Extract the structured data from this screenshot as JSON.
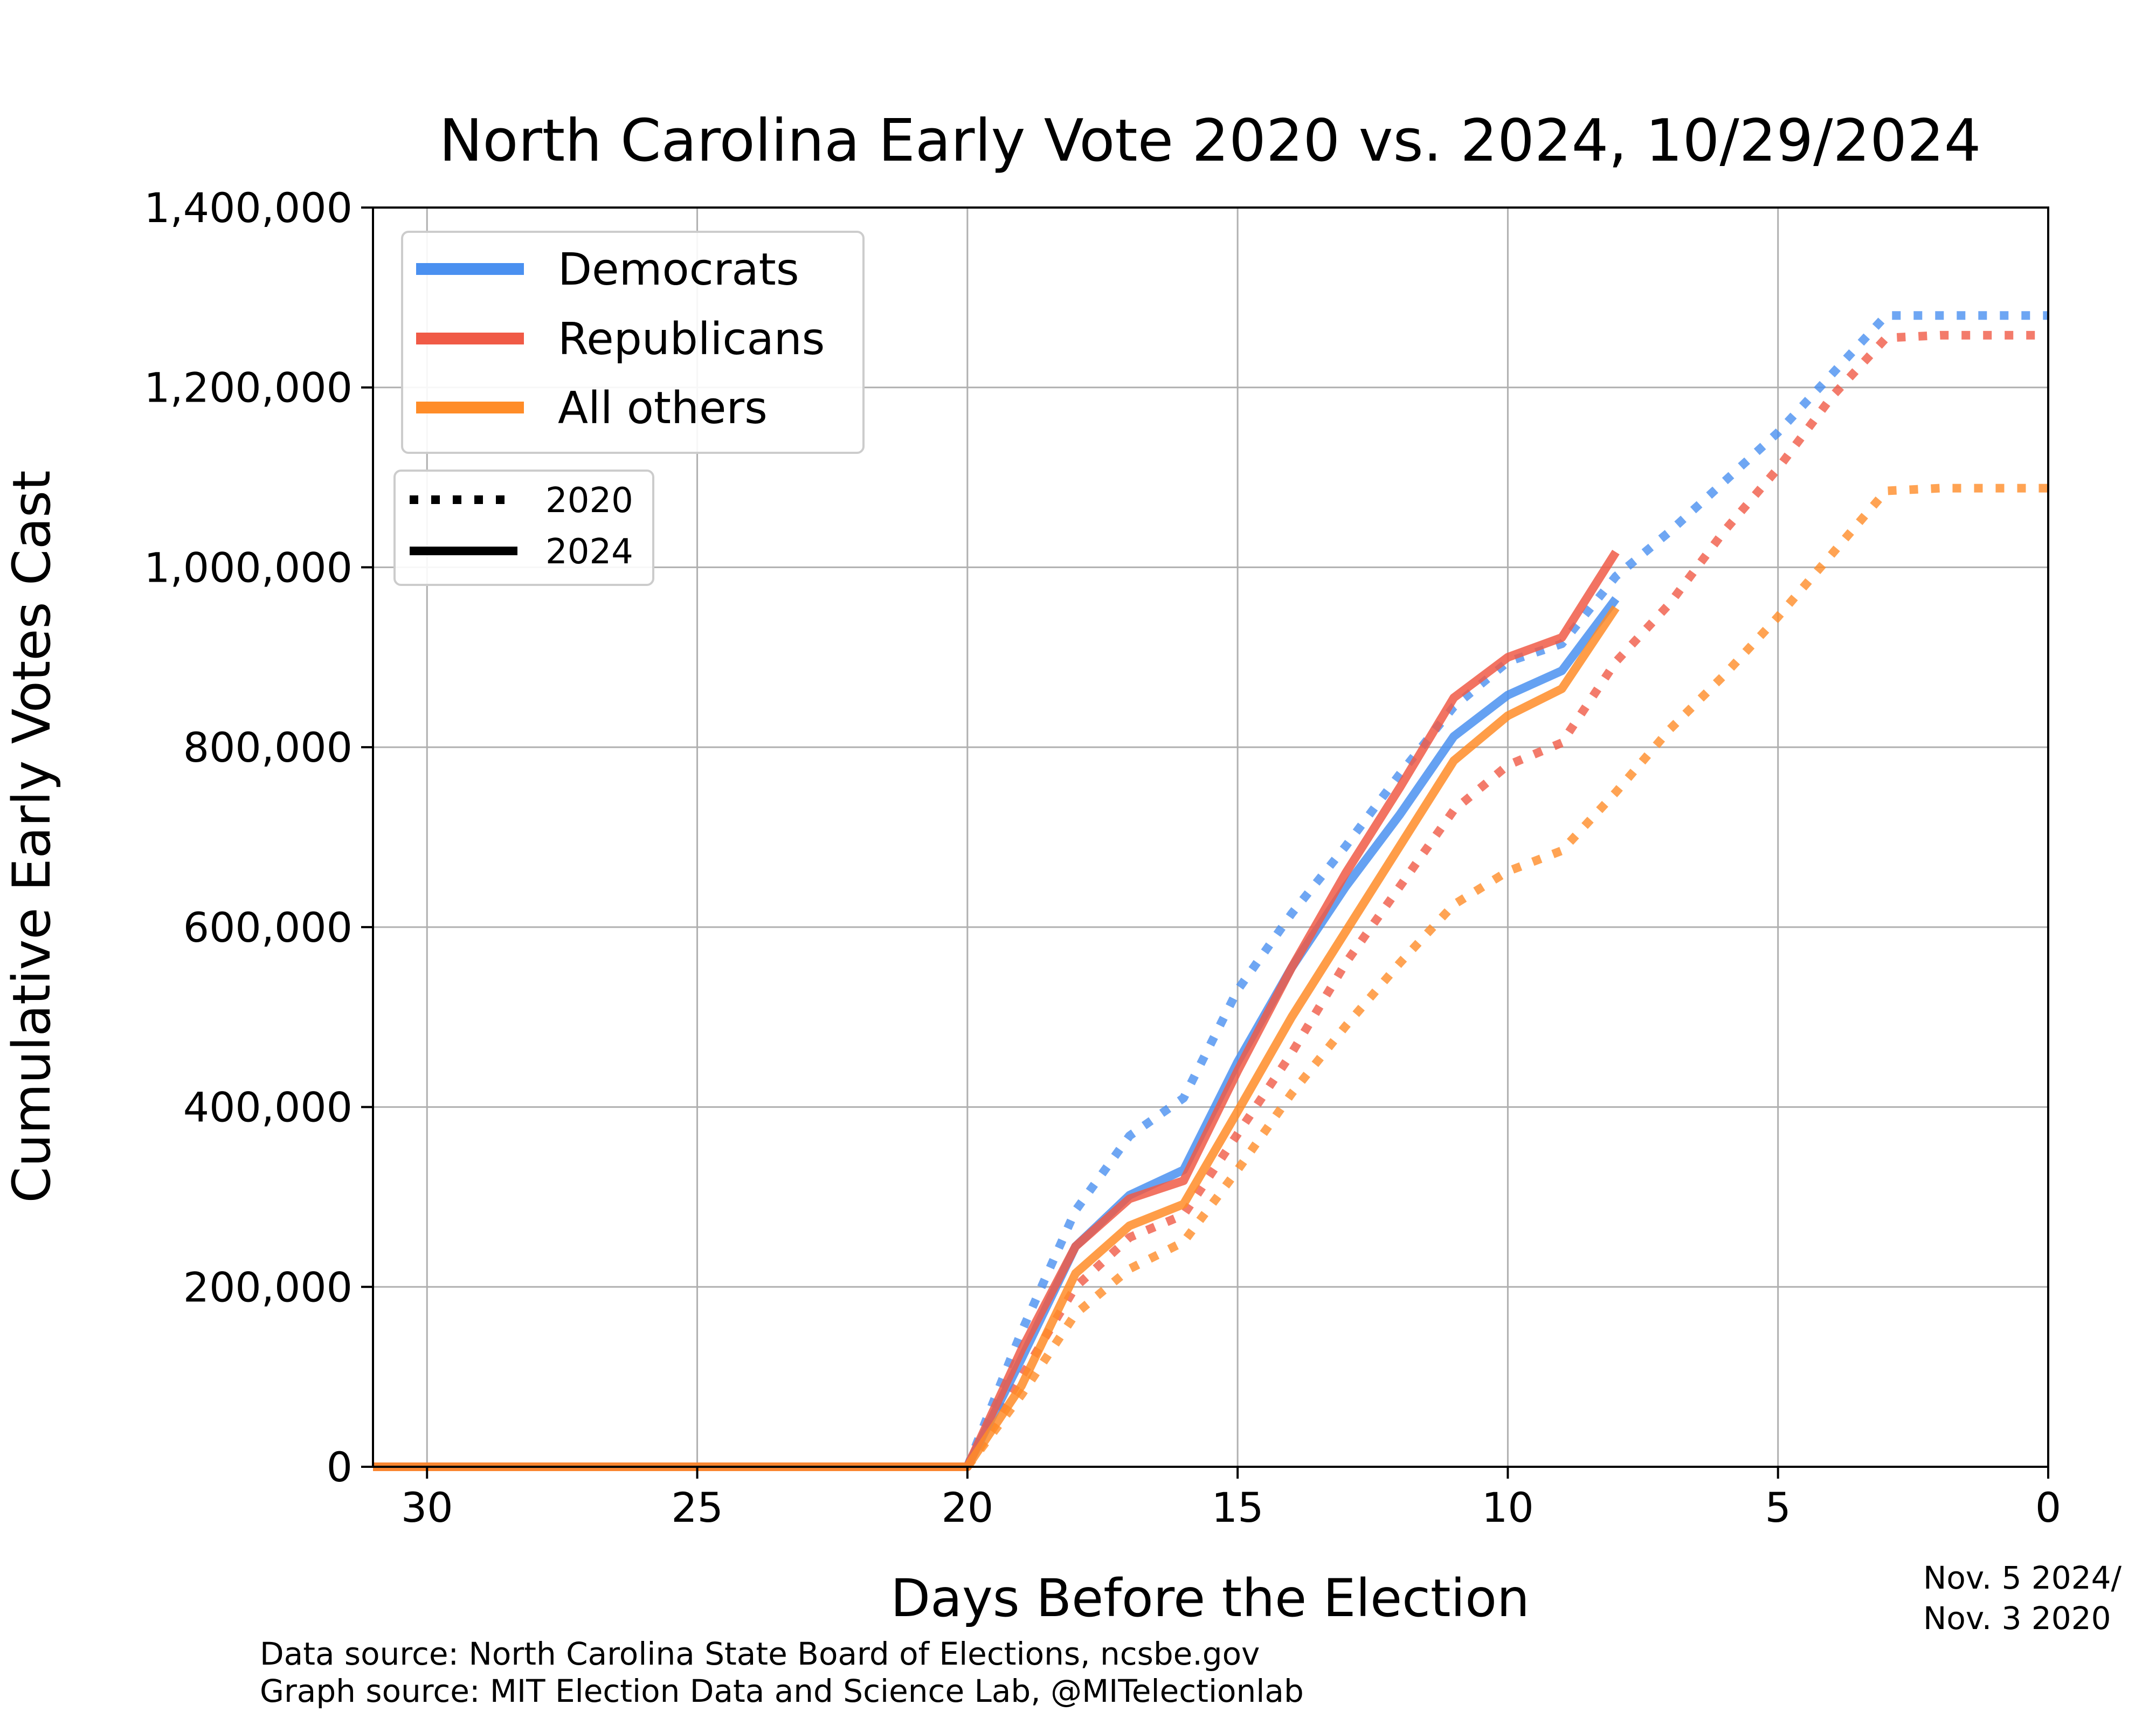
{
  "chart_data": {
    "type": "line",
    "title": "North Carolina Early Vote 2020 vs. 2024, 10/29/2024",
    "xlabel": "Days Before the Election",
    "ylabel": "Cumulative Early Votes Cast",
    "xlim": [
      31,
      0
    ],
    "ylim": [
      0,
      1400000
    ],
    "x_reversed": true,
    "grid": true,
    "x_ticks": [
      30,
      25,
      20,
      15,
      10,
      5,
      0
    ],
    "x_tick_labels": [
      "30",
      "25",
      "20",
      "15",
      "10",
      "5",
      "0"
    ],
    "y_ticks": [
      0,
      200000,
      400000,
      600000,
      800000,
      1000000,
      1200000,
      1400000
    ],
    "y_tick_labels": [
      "0",
      "200,000",
      "400,000",
      "600,000",
      "800,000",
      "1,000,000",
      "1,200,000",
      "1,400,000"
    ],
    "election_day_note": [
      "Nov. 5 2024/",
      "Nov. 3 2020"
    ],
    "legend_party": {
      "placement": "top-left",
      "entries": [
        {
          "label": "Democrats",
          "color": "#4a90f0"
        },
        {
          "label": "Republicans",
          "color": "#f05a46"
        },
        {
          "label": "All others",
          "color": "#ff8c28"
        }
      ]
    },
    "legend_year": {
      "placement": "upper-left",
      "entries": [
        {
          "label": "2020",
          "style": "dotted"
        },
        {
          "label": "2024",
          "style": "solid"
        }
      ]
    },
    "series": [
      {
        "party": "Democrats",
        "year": "2020",
        "color": "#4a90f0",
        "style": "dotted",
        "x": [
          20,
          19,
          18,
          17,
          16,
          15,
          14,
          13,
          12,
          11,
          10,
          9,
          8,
          7,
          6,
          5,
          4,
          3,
          2,
          1,
          0
        ],
        "y": [
          0,
          150000,
          285000,
          368000,
          410000,
          530000,
          615000,
          690000,
          770000,
          845000,
          895000,
          915000,
          990000,
          1040000,
          1095000,
          1150000,
          1215000,
          1280000,
          1280000,
          1280000,
          1280000
        ]
      },
      {
        "party": "Republicans",
        "year": "2020",
        "color": "#f05a46",
        "style": "dotted",
        "x": [
          20,
          19,
          18,
          17,
          16,
          15,
          14,
          13,
          12,
          11,
          10,
          9,
          8,
          7,
          6,
          5,
          4,
          3,
          2,
          1,
          0
        ],
        "y": [
          0,
          100000,
          200000,
          255000,
          280000,
          370000,
          460000,
          560000,
          645000,
          730000,
          780000,
          805000,
          895000,
          960000,
          1040000,
          1110000,
          1190000,
          1255000,
          1258000,
          1258000,
          1258000
        ]
      },
      {
        "party": "All others",
        "year": "2020",
        "color": "#ff8c28",
        "style": "dotted",
        "x": [
          20,
          19,
          18,
          17,
          16,
          15,
          14,
          13,
          12,
          11,
          10,
          9,
          8,
          7,
          6,
          5,
          4,
          3,
          2,
          1,
          0
        ],
        "y": [
          0,
          80000,
          170000,
          220000,
          250000,
          330000,
          415000,
          490000,
          560000,
          625000,
          662000,
          685000,
          750000,
          820000,
          880000,
          945000,
          1015000,
          1085000,
          1088000,
          1088000,
          1088000
        ]
      },
      {
        "party": "Democrats",
        "year": "2024",
        "color": "#4a90f0",
        "style": "solid",
        "x": [
          31,
          30,
          29,
          28,
          27,
          26,
          25,
          24,
          23,
          22,
          21,
          20,
          19,
          18,
          17,
          16,
          15,
          14,
          13,
          12,
          11,
          10,
          9,
          8
        ],
        "y": [
          0,
          0,
          0,
          0,
          0,
          0,
          0,
          0,
          0,
          0,
          0,
          0,
          120000,
          245000,
          302000,
          330000,
          450000,
          555000,
          645000,
          725000,
          812000,
          858000,
          885000,
          965000
        ]
      },
      {
        "party": "Republicans",
        "year": "2024",
        "color": "#f05a46",
        "style": "solid",
        "x": [
          31,
          30,
          29,
          28,
          27,
          26,
          25,
          24,
          23,
          22,
          21,
          20,
          19,
          18,
          17,
          16,
          15,
          14,
          13,
          12,
          11,
          10,
          9,
          8
        ],
        "y": [
          0,
          0,
          0,
          0,
          0,
          0,
          0,
          0,
          0,
          0,
          0,
          0,
          130000,
          245000,
          298000,
          318000,
          440000,
          555000,
          660000,
          755000,
          855000,
          900000,
          922000,
          1017000
        ]
      },
      {
        "party": "All others",
        "year": "2024",
        "color": "#ff8c28",
        "style": "solid",
        "x": [
          31,
          30,
          29,
          28,
          27,
          26,
          25,
          24,
          23,
          22,
          21,
          20,
          19,
          18,
          17,
          16,
          15,
          14,
          13,
          12,
          11,
          10,
          9,
          8
        ],
        "y": [
          0,
          0,
          0,
          0,
          0,
          0,
          0,
          0,
          0,
          0,
          0,
          0,
          90000,
          215000,
          268000,
          292000,
          395000,
          500000,
          595000,
          690000,
          785000,
          835000,
          865000,
          955000
        ]
      }
    ]
  },
  "sources": {
    "data_source": "Data source: North Carolina State Board of Elections, ncsbe.gov",
    "graph_source": "Graph source: MIT Election Data and Science Lab, @MITelectionlab"
  }
}
